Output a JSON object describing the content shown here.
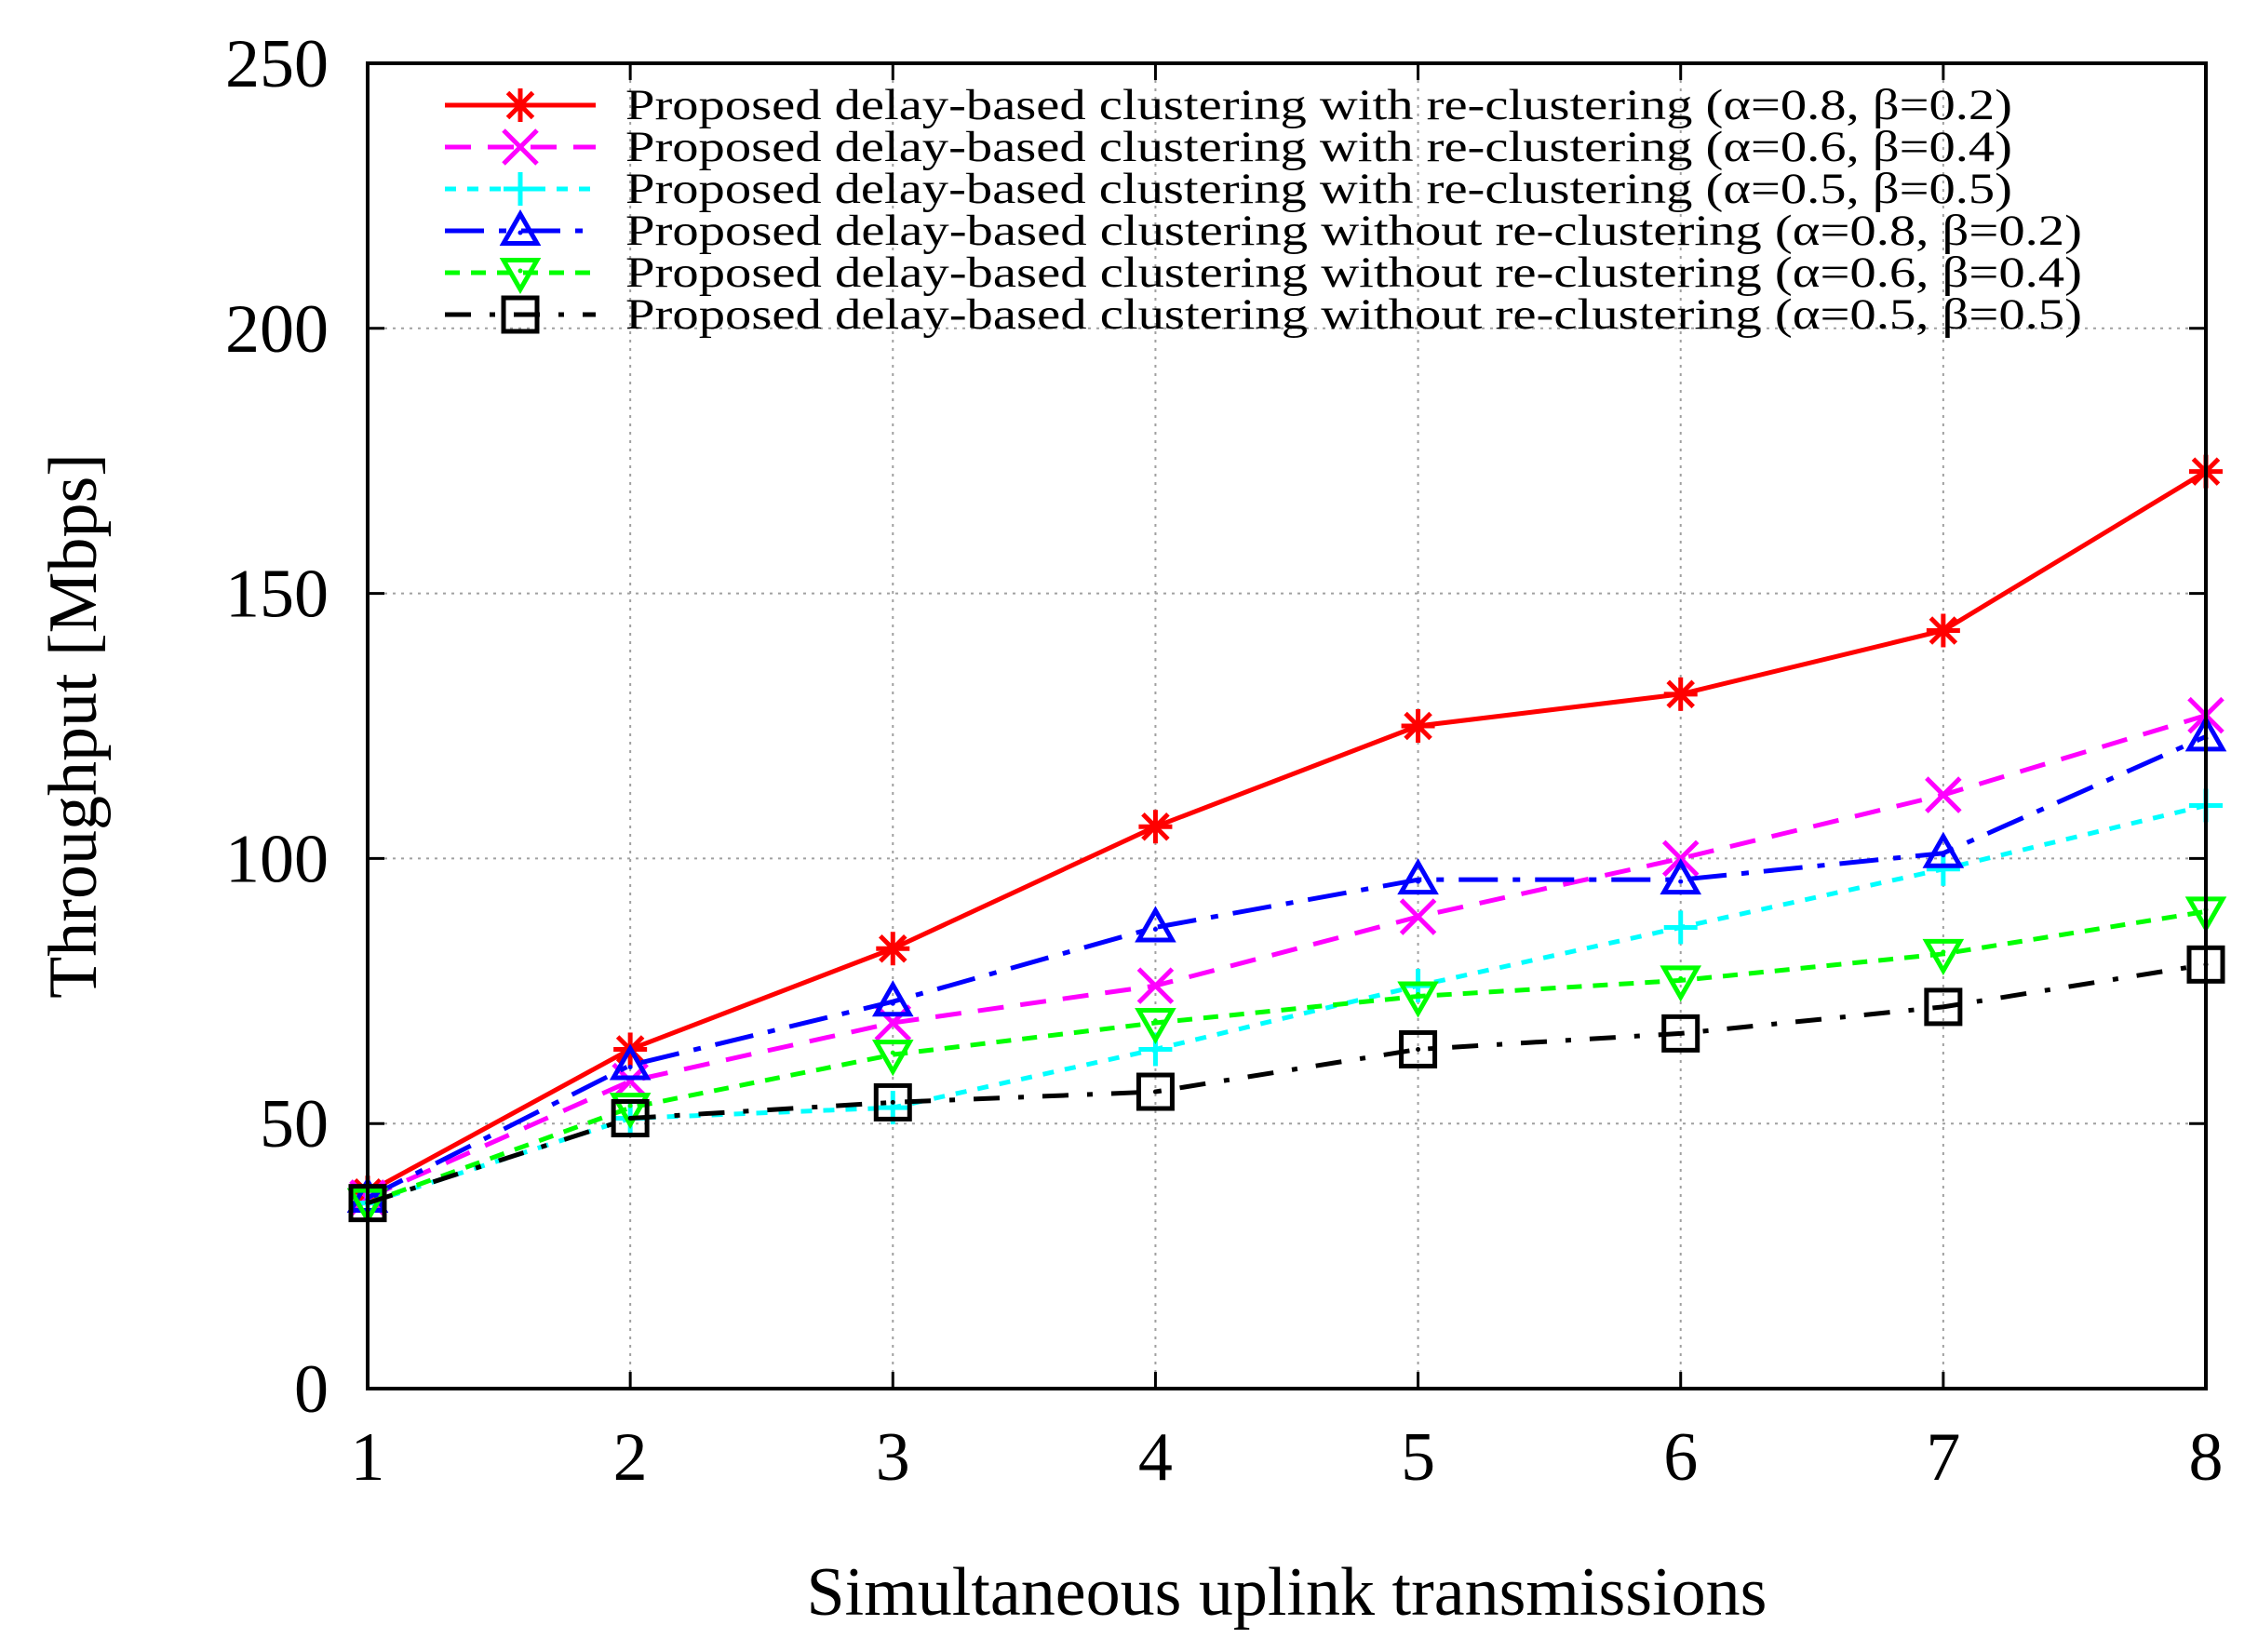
{
  "chart_data": {
    "type": "line",
    "title": "",
    "xlabel": "Simultaneous uplink transmissions",
    "ylabel": "Throughput [Mbps]",
    "x": [
      1,
      2,
      3,
      4,
      5,
      6,
      7,
      8
    ],
    "xlim": [
      1,
      8
    ],
    "ylim": [
      0,
      250
    ],
    "xticks": [
      "1",
      "2",
      "3",
      "4",
      "5",
      "6",
      "7",
      "8"
    ],
    "yticks": [
      "0",
      "50",
      "100",
      "150",
      "200",
      "250"
    ],
    "grid": true,
    "legend_position": "top",
    "series": [
      {
        "name": "Proposed delay-based clustering with re-clustering (α=0.8, β=0.2)",
        "color": "#ff0000",
        "marker": "asterisk",
        "dash": "solid",
        "values": [
          37,
          64,
          83,
          106,
          125,
          131,
          143,
          173
        ]
      },
      {
        "name": "Proposed delay-based clustering with re-clustering (α=0.6, β=0.4)",
        "color": "#ff00ff",
        "marker": "x",
        "dash": "dash",
        "values": [
          36,
          58,
          69,
          76,
          89,
          100,
          112,
          127
        ]
      },
      {
        "name": "Proposed delay-based clustering with re-clustering (α=0.5, β=0.5)",
        "color": "#00ffff",
        "marker": "plus",
        "dash": "dot",
        "values": [
          35,
          51,
          53,
          64,
          76,
          87,
          98,
          110
        ]
      },
      {
        "name": "Proposed delay-based clustering without re-clustering (α=0.8, β=0.2)",
        "color": "#0000ff",
        "marker": "triangle-up",
        "dash": "dashdot",
        "values": [
          36,
          61,
          73,
          87,
          96,
          96,
          101,
          123
        ]
      },
      {
        "name": "Proposed delay-based clustering without re-clustering (α=0.6, β=0.4)",
        "color": "#00ff00",
        "marker": "triangle-down",
        "dash": "shortdash",
        "values": [
          35,
          53,
          63,
          69,
          74,
          77,
          82,
          90
        ]
      },
      {
        "name": "Proposed delay-based clustering without re-clustering (α=0.5, β=0.5)",
        "color": "#000000",
        "marker": "square",
        "dash": "longdashdot",
        "values": [
          35,
          51,
          54,
          56,
          64,
          67,
          72,
          80
        ]
      }
    ]
  }
}
